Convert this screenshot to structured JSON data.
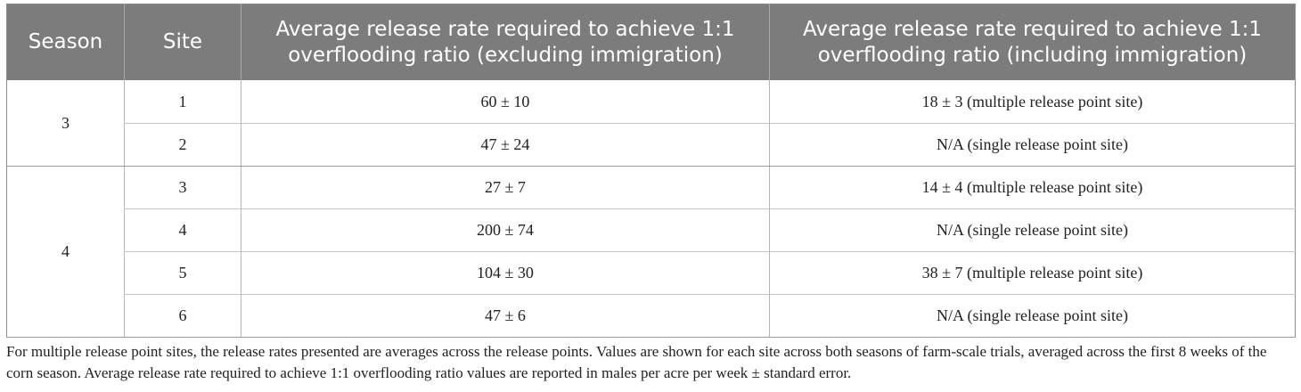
{
  "table": {
    "headers": [
      "Season",
      "Site",
      "Average release rate required to achieve 1:1 overflooding ratio (excluding immigration)",
      "Average release rate required to achieve 1:1 overflooding ratio (including immigration)"
    ],
    "groups": [
      {
        "season": "3",
        "rows": [
          {
            "site": "1",
            "excluding": "60 ± 10",
            "including": "18 ± 3 (multiple release point site)"
          },
          {
            "site": "2",
            "excluding": "47 ± 24",
            "including": "N/A (single release point site)"
          }
        ]
      },
      {
        "season": "4",
        "rows": [
          {
            "site": "3",
            "excluding": "27 ± 7",
            "including": "14 ± 4 (multiple release point site)"
          },
          {
            "site": "4",
            "excluding": "200 ± 74",
            "including": "N/A (single release point site)"
          },
          {
            "site": "5",
            "excluding": "104 ± 30",
            "including": "38 ± 7 (multiple release point site)"
          },
          {
            "site": "6",
            "excluding": "47 ± 6",
            "including": "N/A (single release point site)"
          }
        ]
      }
    ]
  },
  "footnote": "For multiple release point sites, the release rates presented are averages across the release points. Values are shown for each site across both seasons of farm-scale trials, averaged across the first 8 weeks of the corn season. Average release rate required to achieve 1:1 overflooding ratio values are reported in males per acre per week ± standard error."
}
